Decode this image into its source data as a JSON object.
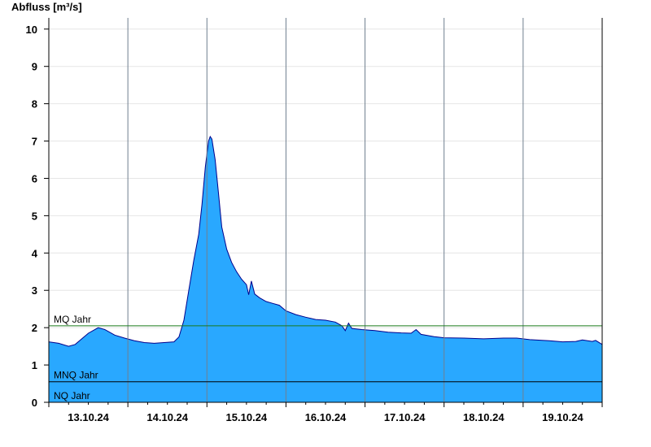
{
  "chart_data": {
    "type": "area",
    "ylabel": "Abfluss [m³/s]",
    "xlabel": "",
    "title": "",
    "ylim": [
      0,
      10.3
    ],
    "yticks": [
      0,
      1,
      2,
      3,
      4,
      5,
      6,
      7,
      8,
      9,
      10
    ],
    "xlim_days": [
      0,
      7
    ],
    "xtick_labels": [
      "13.10.24",
      "14.10.24",
      "15.10.24",
      "16.10.24",
      "17.10.24",
      "18.10.24",
      "19.10.24"
    ],
    "grid": true,
    "fill_color": "#29a8ff",
    "line_color": "#00008b",
    "series": [
      {
        "points": [
          [
            "13.10.24 00:00",
            1.62
          ],
          [
            "13.10.24 03:00",
            1.58
          ],
          [
            "13.10.24 06:00",
            1.5
          ],
          [
            "13.10.24 08:00",
            1.55
          ],
          [
            "13.10.24 10:00",
            1.7
          ],
          [
            "13.10.24 12:00",
            1.85
          ],
          [
            "13.10.24 15:00",
            2.0
          ],
          [
            "13.10.24 17:00",
            1.95
          ],
          [
            "13.10.24 20:00",
            1.8
          ],
          [
            "13.10.24 23:00",
            1.72
          ],
          [
            "14.10.24 02:00",
            1.65
          ],
          [
            "14.10.24 05:00",
            1.6
          ],
          [
            "14.10.24 08:00",
            1.58
          ],
          [
            "14.10.24 11:00",
            1.6
          ],
          [
            "14.10.24 14:00",
            1.62
          ],
          [
            "14.10.24 15:30",
            1.75
          ],
          [
            "14.10.24 17:00",
            2.2
          ],
          [
            "14.10.24 18:30",
            3.0
          ],
          [
            "14.10.24 20:00",
            3.8
          ],
          [
            "14.10.24 21:30",
            4.5
          ],
          [
            "14.10.24 22:30",
            5.3
          ],
          [
            "14.10.24 23:30",
            6.3
          ],
          [
            "15.10.24 00:30",
            7.0
          ],
          [
            "15.10.24 01:00",
            7.12
          ],
          [
            "15.10.24 01:30",
            7.05
          ],
          [
            "15.10.24 02:30",
            6.5
          ],
          [
            "15.10.24 03:30",
            5.6
          ],
          [
            "15.10.24 04:30",
            4.7
          ],
          [
            "15.10.24 06:00",
            4.1
          ],
          [
            "15.10.24 07:30",
            3.75
          ],
          [
            "15.10.24 09:00",
            3.5
          ],
          [
            "15.10.24 10:30",
            3.3
          ],
          [
            "15.10.24 12:00",
            3.15
          ],
          [
            "15.10.24 12:40",
            2.88
          ],
          [
            "15.10.24 13:30",
            3.25
          ],
          [
            "15.10.24 14:30",
            2.9
          ],
          [
            "15.10.24 16:00",
            2.8
          ],
          [
            "15.10.24 18:00",
            2.7
          ],
          [
            "15.10.24 20:00",
            2.65
          ],
          [
            "15.10.24 22:00",
            2.6
          ],
          [
            "16.10.24 00:00",
            2.45
          ],
          [
            "16.10.24 03:00",
            2.35
          ],
          [
            "16.10.24 06:00",
            2.28
          ],
          [
            "16.10.24 09:00",
            2.22
          ],
          [
            "16.10.24 12:00",
            2.2
          ],
          [
            "16.10.24 15:00",
            2.15
          ],
          [
            "16.10.24 17:00",
            2.05
          ],
          [
            "16.10.24 18:00",
            1.92
          ],
          [
            "16.10.24 19:00",
            2.12
          ],
          [
            "16.10.24 20:00",
            1.98
          ],
          [
            "16.10.24 23:00",
            1.95
          ],
          [
            "17.10.24 03:00",
            1.92
          ],
          [
            "17.10.24 07:00",
            1.88
          ],
          [
            "17.10.24 11:00",
            1.86
          ],
          [
            "17.10.24 14:00",
            1.85
          ],
          [
            "17.10.24 15:30",
            1.95
          ],
          [
            "17.10.24 17:00",
            1.82
          ],
          [
            "17.10.24 21:00",
            1.76
          ],
          [
            "18.10.24 00:00",
            1.73
          ],
          [
            "18.10.24 06:00",
            1.72
          ],
          [
            "18.10.24 12:00",
            1.7
          ],
          [
            "18.10.24 18:00",
            1.72
          ],
          [
            "18.10.24 22:00",
            1.72
          ],
          [
            "19.10.24 02:00",
            1.68
          ],
          [
            "19.10.24 08:00",
            1.65
          ],
          [
            "19.10.24 12:00",
            1.62
          ],
          [
            "19.10.24 16:00",
            1.63
          ],
          [
            "19.10.24 18:00",
            1.67
          ],
          [
            "19.10.24 21:00",
            1.63
          ],
          [
            "19.10.24 22:00",
            1.66
          ],
          [
            "20.10.24 00:00",
            1.55
          ]
        ]
      }
    ],
    "reference_lines": [
      {
        "label": "MQ Jahr",
        "value": 2.05,
        "color": "#1a7a1a"
      },
      {
        "label": "MNQ Jahr",
        "value": 0.55,
        "color": "#000000"
      },
      {
        "label": "NQ Jahr",
        "value": 0.0,
        "color": "#000000"
      }
    ]
  }
}
